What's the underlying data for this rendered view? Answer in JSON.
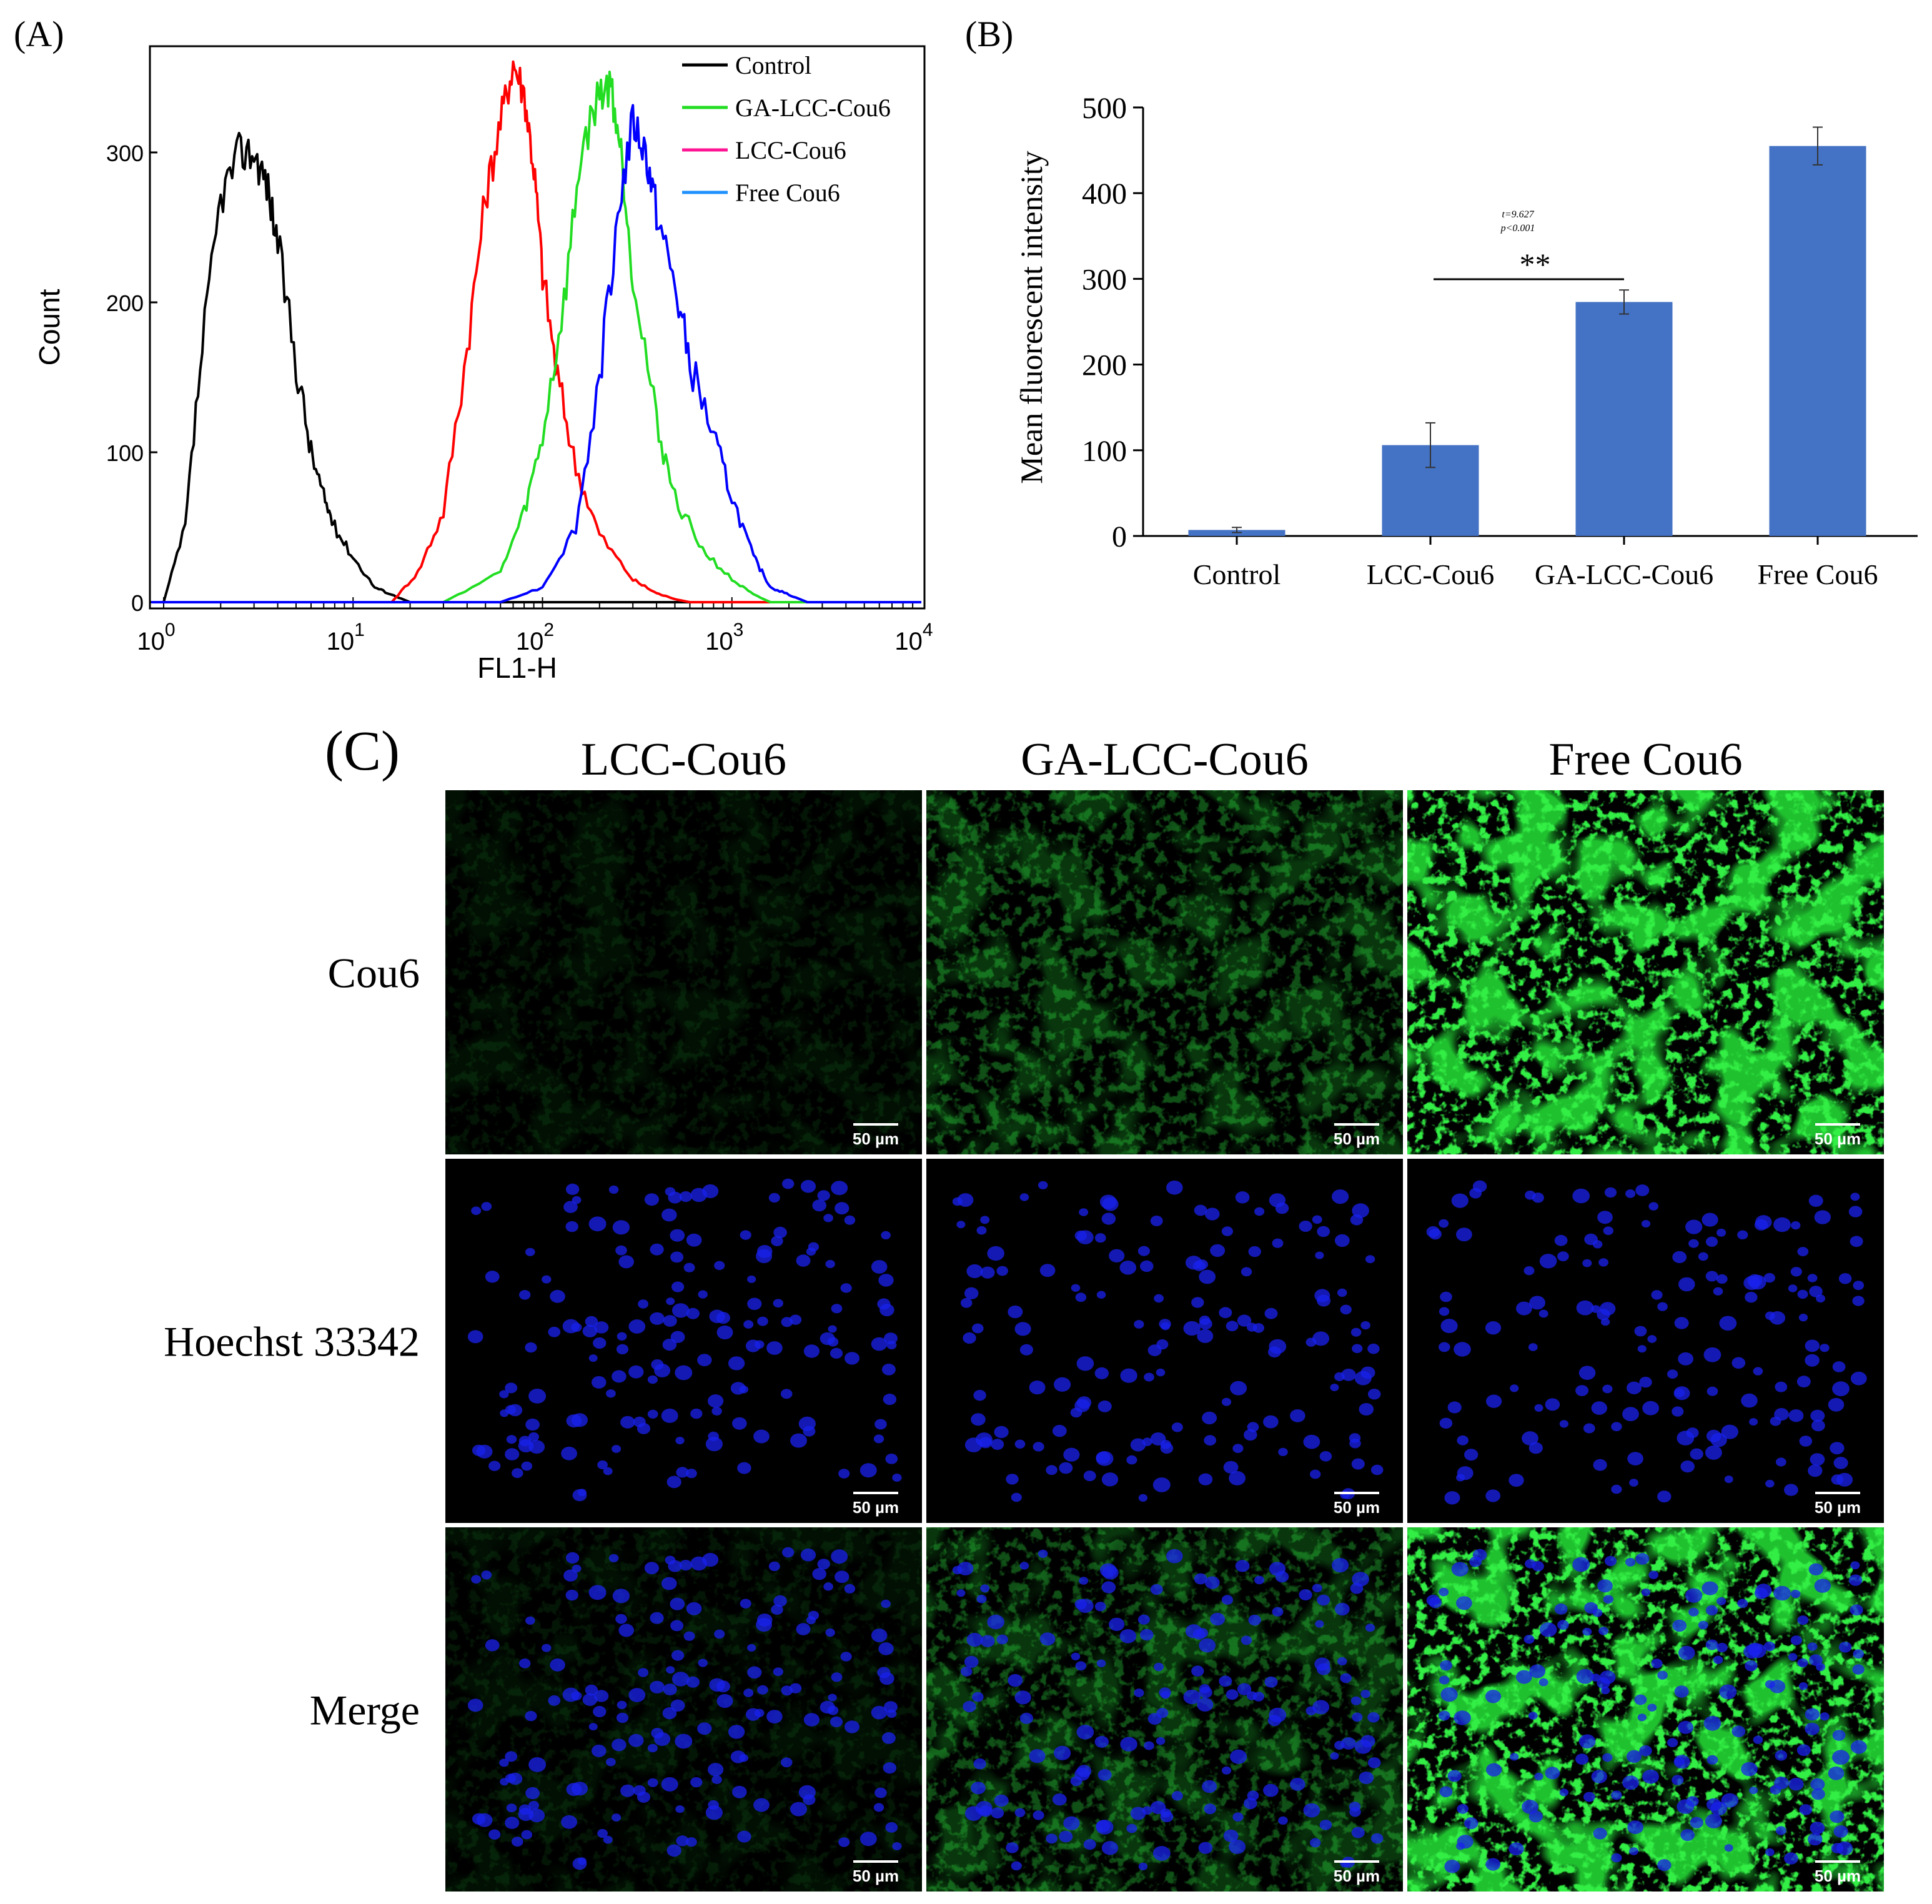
{
  "panel_a": {
    "tag": "(A)",
    "xlabel": "FL1-H",
    "ylabel": "Count",
    "y_ticks": [
      "0",
      "100",
      "200",
      "300"
    ],
    "x_ticks": [
      {
        "base": "10",
        "exp": "0"
      },
      {
        "base": "10",
        "exp": "1"
      },
      {
        "base": "10",
        "exp": "2"
      },
      {
        "base": "10",
        "exp": "3"
      },
      {
        "base": "10",
        "exp": "4"
      }
    ],
    "legend": [
      {
        "label": "Control",
        "color": "#000000"
      },
      {
        "label": "GA-LCC-Cou6",
        "color": "#22dd22"
      },
      {
        "label": "LCC-Cou6",
        "color": "#ff1493"
      },
      {
        "label": "Free Cou6",
        "color": "#1e90ff"
      }
    ]
  },
  "panel_b": {
    "tag": "(B)",
    "ylabel": "Mean fluorescent intensity",
    "y_ticks": [
      "0",
      "100",
      "200",
      "300",
      "400",
      "500"
    ],
    "annotation_t": "t=9.627",
    "annotation_p": "p<0.001",
    "significance": "**"
  },
  "panel_c": {
    "tag": "(C)",
    "column_headers": [
      "LCC-Cou6",
      "GA-LCC-Cou6",
      "Free Cou6"
    ],
    "row_labels": [
      "Cou6",
      "Hoechst 33342",
      "Merge"
    ],
    "scale_bar": "50 µm",
    "green_intensity": [
      0.08,
      0.28,
      1.0
    ]
  },
  "chart_data": [
    {
      "type": "line",
      "panel": "A",
      "xlabel": "FL1-H",
      "ylabel": "Count",
      "xscale": "log",
      "xlim": [
        1,
        10000
      ],
      "ylim": [
        0,
        360
      ],
      "series": [
        {
          "name": "Control",
          "color": "#000000",
          "x": [
            1,
            1.3,
            1.6,
            2,
            2.5,
            3,
            3.5,
            4,
            5,
            6,
            7,
            8,
            10,
            13,
            16,
            20
          ],
          "y": [
            0,
            50,
            170,
            270,
            300,
            300,
            280,
            240,
            160,
            100,
            70,
            50,
            30,
            10,
            5,
            0
          ]
        },
        {
          "name": "LCC-Cou6",
          "color": "#ff0000",
          "x": [
            16,
            22,
            30,
            40,
            50,
            60,
            70,
            80,
            90,
            100,
            120,
            150,
            200,
            300,
            400,
            500,
            600
          ],
          "y": [
            0,
            20,
            60,
            170,
            270,
            320,
            360,
            340,
            290,
            220,
            150,
            90,
            45,
            15,
            6,
            2,
            0
          ]
        },
        {
          "name": "GA-LCC-Cou6",
          "color": "#22dd22",
          "x": [
            30,
            60,
            80,
            100,
            130,
            160,
            200,
            230,
            260,
            300,
            400,
            500,
            700,
            1000,
            1300,
            1600
          ],
          "y": [
            0,
            20,
            60,
            110,
            200,
            300,
            340,
            345,
            300,
            220,
            120,
            70,
            35,
            15,
            5,
            0
          ]
        },
        {
          "name": "Free Cou6",
          "color": "#0000ff",
          "x": [
            60,
            100,
            150,
            200,
            250,
            300,
            350,
            400,
            500,
            600,
            800,
            1000,
            1300,
            1600,
            2000,
            2500
          ],
          "y": [
            0,
            10,
            50,
            150,
            260,
            320,
            300,
            260,
            210,
            160,
            110,
            70,
            30,
            10,
            5,
            0
          ]
        }
      ]
    },
    {
      "type": "bar",
      "panel": "B",
      "categories": [
        "Control",
        "LCC-Cou6",
        "GA-LCC-Cou6",
        "Free Cou6"
      ],
      "values": [
        7,
        106,
        273,
        455
      ],
      "errors": [
        3,
        26,
        14,
        22
      ],
      "ylabel": "Mean fluorescent intensity",
      "ylim": [
        0,
        500
      ],
      "bar_color": "#4472c4",
      "comparison": {
        "from": 1,
        "to": 2,
        "label": "**"
      }
    }
  ]
}
